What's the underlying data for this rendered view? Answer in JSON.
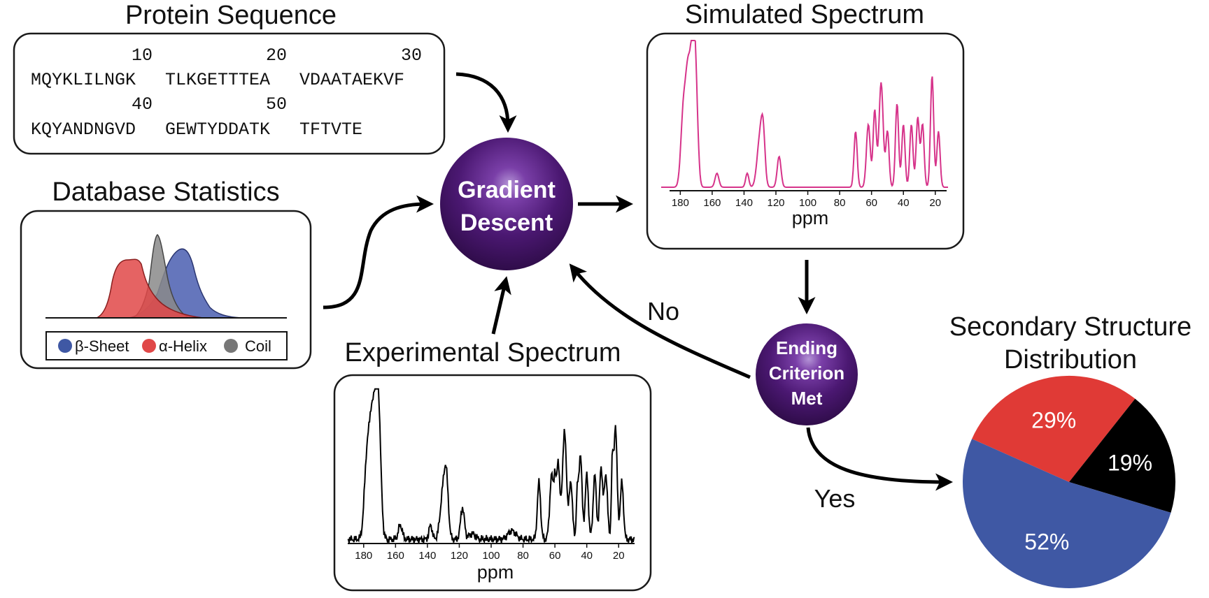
{
  "protein_sequence": {
    "title": "Protein Sequence",
    "rows": [
      {
        "ruler": [
          "10",
          "20",
          "30"
        ],
        "blocks": [
          "MQYKLILNGK",
          "TLKGETTTEA",
          "VDAATAEKVF"
        ]
      },
      {
        "ruler": [
          "40",
          "50"
        ],
        "blocks": [
          "KQYANDNGVD",
          "GEWTYDDATK",
          "TFTVTE"
        ]
      }
    ]
  },
  "database_statistics": {
    "title": "Database Statistics",
    "legend": [
      {
        "label": "β-Sheet",
        "color": "#3f58a4"
      },
      {
        "label": "α-Helix",
        "color": "#e04848"
      },
      {
        "label": "Coil",
        "color": "#777777"
      }
    ]
  },
  "gradient_descent": {
    "line1": "Gradient",
    "line2": "Descent"
  },
  "simulated_spectrum": {
    "title": "Simulated Spectrum",
    "xlabel": "ppm",
    "ticks": [
      "180",
      "160",
      "140",
      "120",
      "100",
      "80",
      "60",
      "40",
      "20"
    ],
    "color": "#d6338a"
  },
  "experimental_spectrum": {
    "title": "Experimental Spectrum",
    "xlabel": "ppm",
    "ticks": [
      "180",
      "160",
      "140",
      "120",
      "100",
      "80",
      "60",
      "40",
      "20"
    ],
    "color": "#000000"
  },
  "ending_criterion": {
    "line1": "Ending",
    "line2": "Criterion",
    "line3": "Met"
  },
  "labels": {
    "no": "No",
    "yes": "Yes"
  },
  "secondary_structure": {
    "title_line1": "Secondary Structure",
    "title_line2": "Distribution",
    "chart_data": {
      "type": "pie",
      "slices": [
        {
          "label": "29%",
          "value": 29,
          "color": "#e03a36"
        },
        {
          "label": "19%",
          "value": 19,
          "color": "#000000"
        },
        {
          "label": "52%",
          "value": 52,
          "color": "#3f58a4"
        }
      ]
    }
  },
  "colors": {
    "node": "#4a1670",
    "node_highlight": "#9a6ec4"
  }
}
